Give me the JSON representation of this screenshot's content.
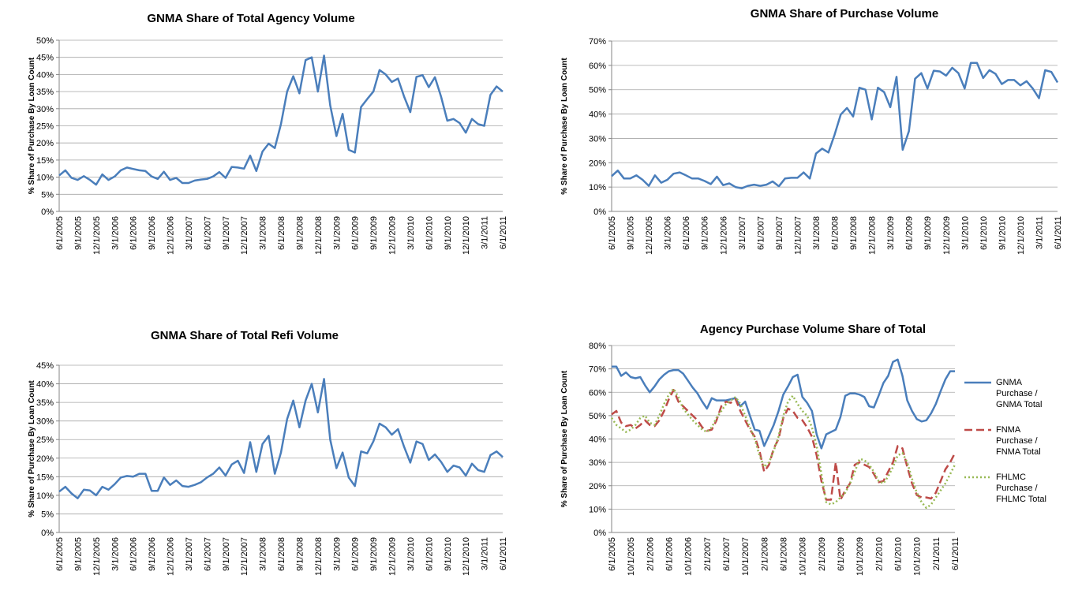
{
  "chart_data": [
    {
      "type": "line",
      "title": "GNMA Share of Total Agency Volume",
      "ylabel": "% Share of Purchase By Loan Count",
      "categories": [
        "6/1/2005",
        null,
        null,
        "9/1/2005",
        null,
        null,
        "12/1/2005",
        null,
        null,
        "3/1/2006",
        null,
        null,
        "6/1/2006",
        null,
        null,
        "9/1/2006",
        null,
        null,
        "12/1/2006",
        null,
        null,
        "3/1/2007",
        null,
        null,
        "6/1/2007",
        null,
        null,
        "9/1/2007",
        null,
        null,
        "12/1/2007",
        null,
        null,
        "3/1/2008",
        null,
        null,
        "6/1/2008",
        null,
        null,
        "9/1/2008",
        null,
        null,
        "12/1/2008",
        null,
        null,
        "3/1/2009",
        null,
        null,
        "6/1/2009",
        null,
        null,
        "9/1/2009",
        null,
        null,
        "12/1/2009",
        null,
        null,
        "3/1/2010",
        null,
        null,
        "6/1/2010",
        null,
        null,
        "9/1/2010",
        null,
        null,
        "12/1/2010",
        null,
        null,
        "3/1/2011",
        null,
        null,
        "6/1/2011"
      ],
      "values": [
        10.5,
        12,
        9.8,
        9.2,
        10.3,
        9.2,
        7.8,
        10.8,
        9.2,
        10.2,
        12,
        12.8,
        12.4,
        12,
        11.8,
        10.2,
        9.5,
        11.6,
        9.2,
        9.8,
        8.3,
        8.3,
        9,
        9.3,
        9.5,
        10.2,
        11.5,
        9.8,
        13,
        12.8,
        12.5,
        16.3,
        11.8,
        17.5,
        19.8,
        18.5,
        25.5,
        35,
        39.5,
        34.5,
        44.2,
        45,
        35,
        45.5,
        31,
        22,
        28.5,
        18,
        17.2,
        30.5,
        32.8,
        35,
        41.3,
        40,
        37.8,
        38.8,
        33.5,
        29,
        39.3,
        39.8,
        36.3,
        39.2,
        33.5,
        26.5,
        27,
        25.8,
        23,
        27,
        25.5,
        25,
        34,
        36.5,
        35
      ],
      "color": "#4a7ebb",
      "ylim": [
        0,
        50
      ],
      "yticks": [
        {
          "value": 0,
          "label": "0%"
        },
        {
          "value": 5,
          "label": "5%"
        },
        {
          "value": 10,
          "label": "10%"
        },
        {
          "value": 15,
          "label": "15%"
        },
        {
          "value": 20,
          "label": "20%"
        },
        {
          "value": 25,
          "label": "25%"
        },
        {
          "value": 30,
          "label": "30%"
        },
        {
          "value": 35,
          "label": "35%"
        },
        {
          "value": 40,
          "label": "40%"
        },
        {
          "value": 45,
          "label": "45%"
        },
        {
          "value": 50,
          "label": "50%"
        }
      ],
      "grid": true
    },
    {
      "type": "line",
      "title": "GNMA Share of Purchase Volume",
      "ylabel": "% Share of Purchase By Loan Count",
      "categories": [
        "6/1/2005",
        null,
        null,
        "9/1/2005",
        null,
        null,
        "12/1/2005",
        null,
        null,
        "3/1/2006",
        null,
        null,
        "6/1/2006",
        null,
        null,
        "9/1/2006",
        null,
        null,
        "12/1/2006",
        null,
        null,
        "3/1/2007",
        null,
        null,
        "6/1/2007",
        null,
        null,
        "9/1/2007",
        null,
        null,
        "12/1/2007",
        null,
        null,
        "3/1/2008",
        null,
        null,
        "6/1/2008",
        null,
        null,
        "9/1/2008",
        null,
        null,
        "12/1/2008",
        null,
        null,
        "3/1/2009",
        null,
        null,
        "6/1/2009",
        null,
        null,
        "9/1/2009",
        null,
        null,
        "12/1/2009",
        null,
        null,
        "3/1/2010",
        null,
        null,
        "6/1/2010",
        null,
        null,
        "9/1/2010",
        null,
        null,
        "12/1/2010",
        null,
        null,
        "3/1/2011",
        null,
        null,
        "6/1/2011"
      ],
      "values": [
        14.5,
        16.8,
        13.5,
        13.5,
        14.8,
        13,
        10.5,
        14.8,
        11.8,
        13,
        15.5,
        16,
        14.8,
        13.5,
        13.5,
        12.5,
        11.2,
        14.3,
        10.8,
        11.5,
        10,
        9.5,
        10.5,
        11,
        10.5,
        11,
        12.3,
        10.3,
        13.5,
        13.8,
        13.8,
        16,
        13.5,
        23.8,
        25.8,
        24.2,
        31.5,
        39.8,
        42.5,
        39,
        50.8,
        50,
        37.8,
        50.8,
        49,
        42.8,
        55.3,
        25.3,
        33,
        54.5,
        56.8,
        50.5,
        57.8,
        57.5,
        55.8,
        59,
        56.8,
        50.5,
        61,
        61,
        54.8,
        58,
        56.5,
        52.3,
        54,
        54,
        51.8,
        53.5,
        50.5,
        46.5,
        58,
        57.3,
        53
      ],
      "color": "#4a7ebb",
      "ylim": [
        0,
        70
      ],
      "yticks": [
        {
          "value": 0,
          "label": "0%"
        },
        {
          "value": 10,
          "label": "10%"
        },
        {
          "value": 20,
          "label": "20%"
        },
        {
          "value": 30,
          "label": "30%"
        },
        {
          "value": 40,
          "label": "40%"
        },
        {
          "value": 50,
          "label": "50%"
        },
        {
          "value": 60,
          "label": "60%"
        },
        {
          "value": 70,
          "label": "70%"
        }
      ],
      "grid": true
    },
    {
      "type": "line",
      "title": "GNMA Share of Total Refi Volume",
      "ylabel": "% Share of Purchase By Loan Count",
      "categories": [
        "6/1/2005",
        null,
        null,
        "9/1/2005",
        null,
        null,
        "12/1/2005",
        null,
        null,
        "3/1/2006",
        null,
        null,
        "6/1/2006",
        null,
        null,
        "9/1/2006",
        null,
        null,
        "12/1/2006",
        null,
        null,
        "3/1/2007",
        null,
        null,
        "6/1/2007",
        null,
        null,
        "9/1/2007",
        null,
        null,
        "12/1/2007",
        null,
        null,
        "3/1/2008",
        null,
        null,
        "6/1/2008",
        null,
        null,
        "9/1/2008",
        null,
        null,
        "12/1/2008",
        null,
        null,
        "3/1/2009",
        null,
        null,
        "6/1/2009",
        null,
        null,
        "9/1/2009",
        null,
        null,
        "12/1/2009",
        null,
        null,
        "3/1/2010",
        null,
        null,
        "6/1/2010",
        null,
        null,
        "9/1/2010",
        null,
        null,
        "12/1/2010",
        null,
        null,
        "3/1/2011",
        null,
        null,
        "6/1/2011"
      ],
      "values": [
        11,
        12.3,
        10.5,
        9.2,
        11.5,
        11.3,
        10,
        12.3,
        11.5,
        13,
        14.8,
        15.2,
        15,
        15.8,
        15.8,
        11.2,
        11.2,
        14.8,
        12.8,
        14,
        12.5,
        12.3,
        12.8,
        13.5,
        14.8,
        15.8,
        17.5,
        15.3,
        18.3,
        19.3,
        16,
        24.3,
        16.3,
        23.8,
        26,
        15.8,
        21.5,
        30.5,
        35.5,
        28.3,
        35.5,
        40,
        32.3,
        41.3,
        25,
        17.3,
        21.5,
        14.8,
        12.5,
        21.8,
        21.3,
        24.5,
        29.3,
        28.3,
        26.3,
        27.8,
        23,
        18.8,
        24.5,
        23.8,
        19.5,
        21,
        19,
        16.3,
        18,
        17.5,
        15.3,
        18.5,
        16.8,
        16.3,
        20.8,
        21.8,
        20.3
      ],
      "color": "#4a7ebb",
      "ylim": [
        0,
        45
      ],
      "yticks": [
        {
          "value": 0,
          "label": "0%"
        },
        {
          "value": 5,
          "label": "5%"
        },
        {
          "value": 10,
          "label": "10%"
        },
        {
          "value": 15,
          "label": "15%"
        },
        {
          "value": 20,
          "label": "20%"
        },
        {
          "value": 25,
          "label": "25%"
        },
        {
          "value": 30,
          "label": "30%"
        },
        {
          "value": 35,
          "label": "35%"
        },
        {
          "value": 40,
          "label": "40%"
        },
        {
          "value": 45,
          "label": "45%"
        }
      ],
      "grid": true
    },
    {
      "type": "line",
      "title": "Agency Purchase Volume Share of Total",
      "ylabel": "% Share of Purchase By Loan Count",
      "categories": [
        "6/1/2005",
        null,
        null,
        null,
        "10/1/2005",
        null,
        null,
        null,
        "2/1/2006",
        null,
        null,
        null,
        "6/1/2006",
        null,
        null,
        null,
        "10/1/2006",
        null,
        null,
        null,
        "2/1/2007",
        null,
        null,
        null,
        "6/1/2007",
        null,
        null,
        null,
        "10/1/2007",
        null,
        null,
        null,
        "2/1/2008",
        null,
        null,
        null,
        "6/1/2008",
        null,
        null,
        null,
        "10/1/2008",
        null,
        null,
        null,
        "2/1/2009",
        null,
        null,
        null,
        "6/1/2009",
        null,
        null,
        null,
        "10/1/2009",
        null,
        null,
        null,
        "2/1/2010",
        null,
        null,
        null,
        "6/1/2010",
        null,
        null,
        null,
        "10/1/2010",
        null,
        null,
        null,
        "2/1/2011",
        null,
        null,
        null,
        "6/1/2011"
      ],
      "series": [
        {
          "name": "GNMA Purchase / GNMA Total",
          "color": "#4a7ebb",
          "style": "solid",
          "values": [
            71,
            71,
            67,
            68.5,
            66.5,
            66,
            66.5,
            63,
            60,
            62.5,
            65.5,
            67.5,
            69,
            69.5,
            69.5,
            68,
            65,
            62,
            59.5,
            56,
            53,
            57.5,
            56.5,
            56.5,
            56.5,
            57,
            57.5,
            54,
            56,
            50,
            44,
            43.5,
            37,
            41.5,
            46,
            52,
            59,
            62.5,
            66.5,
            67.5,
            58,
            55.5,
            52,
            42,
            36,
            42,
            43,
            44,
            49.5,
            58.5,
            59.5,
            59.5,
            59,
            58,
            54,
            53.5,
            58.5,
            64,
            67,
            73,
            74,
            67,
            56.5,
            52,
            48.5,
            47.5,
            48,
            51,
            55,
            60.5,
            65.5,
            69,
            69
          ]
        },
        {
          "name": "FNMA Purchase / FNMA Total",
          "color": "#be4b48",
          "style": "dashed",
          "values": [
            50.5,
            52,
            47,
            45.5,
            46,
            44.5,
            46,
            48,
            46,
            45.5,
            48,
            52,
            57,
            61,
            56,
            54,
            52,
            50,
            48,
            45,
            43.5,
            44,
            48,
            54,
            56,
            55.5,
            57,
            52,
            48,
            44,
            41,
            35,
            26,
            29,
            36,
            40,
            49,
            53,
            52,
            49,
            48,
            45,
            41,
            33,
            22,
            14,
            14,
            30,
            14,
            18,
            21,
            29,
            30,
            29,
            28,
            25,
            21.5,
            22,
            26,
            30,
            37,
            36,
            28,
            21,
            16,
            15,
            15,
            14.5,
            17,
            22,
            27,
            30,
            34
          ]
        },
        {
          "name": "FHLMC Purchase / FHLMC Total",
          "color": "#98b954",
          "style": "dotted",
          "values": [
            49,
            46,
            44.5,
            43,
            44,
            46,
            49,
            50,
            47,
            46,
            50,
            55,
            59,
            61.5,
            58,
            53,
            50.5,
            48,
            46,
            44,
            43,
            45,
            49,
            52,
            55,
            56.5,
            58,
            55,
            50,
            45,
            40,
            33,
            28,
            30,
            35,
            41,
            50,
            56,
            58.5,
            55,
            52,
            50,
            45,
            37,
            25,
            13,
            12,
            13,
            15,
            17,
            21,
            26,
            31.5,
            31,
            29,
            26,
            22,
            21,
            24,
            28,
            33,
            34,
            30,
            23,
            17,
            13,
            10.5,
            12,
            15,
            18,
            21,
            25,
            29
          ]
        }
      ],
      "ylim": [
        0,
        80
      ],
      "yticks": [
        {
          "value": 0,
          "label": "0%"
        },
        {
          "value": 10,
          "label": "10%"
        },
        {
          "value": 20,
          "label": "20%"
        },
        {
          "value": 30,
          "label": "30%"
        },
        {
          "value": 40,
          "label": "40%"
        },
        {
          "value": 50,
          "label": "50%"
        },
        {
          "value": 60,
          "label": "60%"
        },
        {
          "value": 70,
          "label": "70%"
        },
        {
          "value": 80,
          "label": "80%"
        }
      ],
      "grid": true,
      "legend": "right"
    }
  ]
}
